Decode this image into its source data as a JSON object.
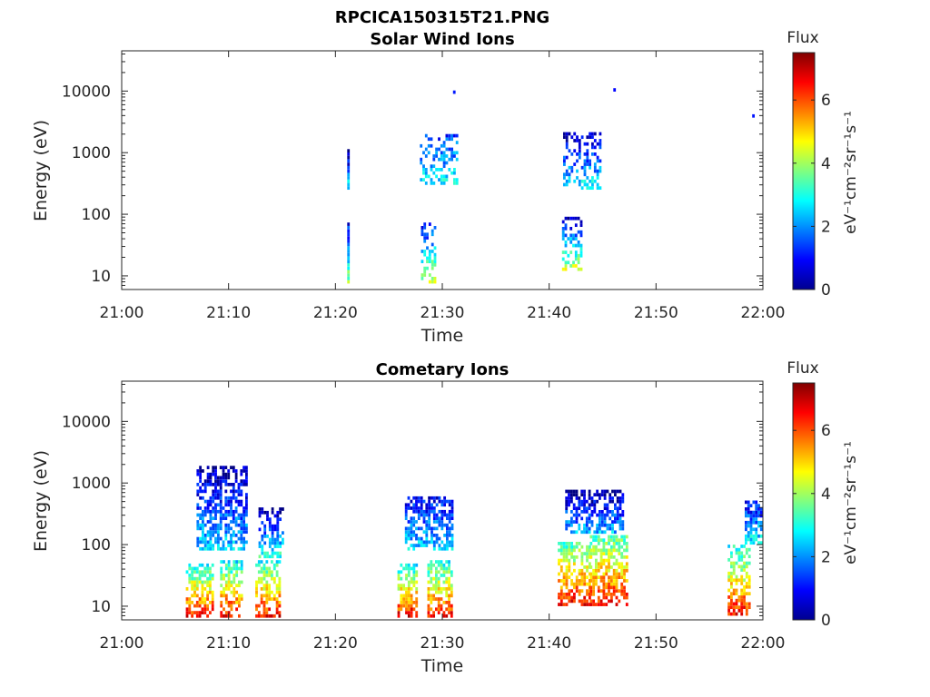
{
  "figure_title": "RPCICA150315T21.PNG",
  "chart_data": [
    {
      "type": "heatmap",
      "title": "Solar Wind Ions",
      "xlabel": "Time",
      "ylabel": "Energy (eV)",
      "x_ticks": [
        "21:00",
        "21:10",
        "21:20",
        "21:30",
        "21:40",
        "21:50",
        "22:00"
      ],
      "x_range": [
        "21:00",
        "22:00"
      ],
      "y_ticks": [
        10,
        100,
        1000,
        10000
      ],
      "y_tick_labels": [
        "10",
        "100",
        "1000",
        "10000"
      ],
      "y_scale": "log",
      "y_range": [
        6,
        45000
      ],
      "grid": false,
      "colorbar": {
        "title": "Flux",
        "label": "eV⁻¹cm⁻²sr⁻¹s⁻¹",
        "ticks": [
          0,
          2,
          4,
          6
        ],
        "range": [
          0,
          7.5
        ],
        "colormap": "jet"
      },
      "bursts": [
        {
          "t": [
            21.1,
            21.2
          ],
          "e": [
            7.5,
            70
          ],
          "flux": [
            1.5,
            4.5
          ]
        },
        {
          "t": [
            21.1,
            21.2
          ],
          "e": [
            250,
            1100
          ],
          "flux": [
            0.5,
            3.5
          ]
        },
        {
          "t": [
            28.0,
            29.3
          ],
          "e": [
            7.5,
            70
          ],
          "flux": [
            1.5,
            5
          ]
        },
        {
          "t": [
            27.9,
            31.3
          ],
          "e": [
            300,
            1800
          ],
          "flux": [
            2,
            3.5
          ]
        },
        {
          "t": [
            41.2,
            43.1
          ],
          "e": [
            12,
            90
          ],
          "flux": [
            1,
            5
          ]
        },
        {
          "t": [
            41.3,
            44.9
          ],
          "e": [
            250,
            2000
          ],
          "flux": [
            1,
            3.5
          ]
        },
        {
          "t": [
            46.0,
            46.1
          ],
          "e": [
            9800,
            10200
          ],
          "flux": [
            1.5,
            2
          ]
        },
        {
          "t": [
            31.0,
            31.1
          ],
          "e": [
            9000,
            9500
          ],
          "flux": [
            1,
            1.5
          ]
        },
        {
          "t": [
            59.0,
            59.1
          ],
          "e": [
            3700,
            3900
          ],
          "flux": [
            1.5,
            2
          ]
        }
      ]
    },
    {
      "type": "heatmap",
      "title": "Cometary Ions",
      "xlabel": "Time",
      "ylabel": "Energy (eV)",
      "x_ticks": [
        "21:00",
        "21:10",
        "21:20",
        "21:30",
        "21:40",
        "21:50",
        "22:00"
      ],
      "x_range": [
        "21:00",
        "22:00"
      ],
      "y_ticks": [
        10,
        100,
        1000,
        10000
      ],
      "y_tick_labels": [
        "10",
        "100",
        "1000",
        "10000"
      ],
      "y_scale": "log",
      "y_range": [
        6,
        45000
      ],
      "grid": false,
      "colorbar": {
        "title": "Flux",
        "label": "eV⁻¹cm⁻²sr⁻¹s⁻¹",
        "ticks": [
          0,
          2,
          4,
          6
        ],
        "range": [
          0,
          7.5
        ],
        "colormap": "jet"
      },
      "bursts": [
        {
          "t": [
            6.0,
            8.5
          ],
          "e": [
            6.5,
            45
          ],
          "flux": [
            3.5,
            7.3
          ]
        },
        {
          "t": [
            9.2,
            11.2
          ],
          "e": [
            6.5,
            50
          ],
          "flux": [
            3.5,
            7.2
          ]
        },
        {
          "t": [
            12.5,
            14.8
          ],
          "e": [
            6.5,
            55
          ],
          "flux": [
            3.5,
            7.2
          ]
        },
        {
          "t": [
            7.0,
            11.8
          ],
          "e": [
            80,
            1700
          ],
          "flux": [
            1.0,
            3.2
          ]
        },
        {
          "t": [
            12.8,
            15.0
          ],
          "e": [
            60,
            400
          ],
          "flux": [
            0.8,
            3.8
          ]
        },
        {
          "t": [
            25.8,
            27.5
          ],
          "e": [
            6.5,
            45
          ],
          "flux": [
            3.5,
            7.3
          ]
        },
        {
          "t": [
            28.6,
            30.8
          ],
          "e": [
            6.5,
            50
          ],
          "flux": [
            3.5,
            7.2
          ]
        },
        {
          "t": [
            26.5,
            31.0
          ],
          "e": [
            80,
            600
          ],
          "flux": [
            1.5,
            3.2
          ]
        },
        {
          "t": [
            40.8,
            43.8
          ],
          "e": [
            10,
            100
          ],
          "flux": [
            4,
            7.2
          ]
        },
        {
          "t": [
            43.8,
            47.2
          ],
          "e": [
            10,
            130
          ],
          "flux": [
            4,
            7.2
          ]
        },
        {
          "t": [
            41.5,
            47.0
          ],
          "e": [
            150,
            700
          ],
          "flux": [
            0.8,
            3
          ]
        },
        {
          "t": [
            56.7,
            58.7
          ],
          "e": [
            7,
            90
          ],
          "flux": [
            3.5,
            7.2
          ]
        },
        {
          "t": [
            58.3,
            59.9
          ],
          "e": [
            100,
            500
          ],
          "flux": [
            1.5,
            3.5
          ]
        }
      ]
    }
  ]
}
